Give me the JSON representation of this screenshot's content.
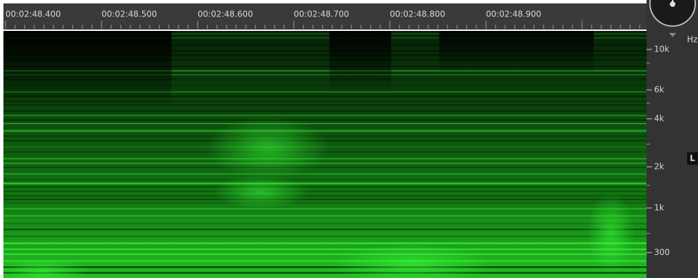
{
  "ruler": {
    "labels": [
      "00:02:48.400",
      "00:02:48.500",
      "00:02:48.600",
      "00:02:48.700",
      "00:02:48.800",
      "00:02:48.900"
    ]
  },
  "frequency_axis": {
    "unit": "Hz",
    "labels": [
      "10k",
      "6k",
      "4k",
      "2k",
      "1k",
      "300"
    ]
  },
  "channel": "L"
}
